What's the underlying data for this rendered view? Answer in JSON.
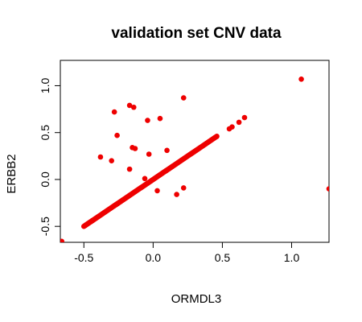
{
  "chart_data": {
    "type": "scatter",
    "title": "validation set CNV data",
    "xlabel": "ORMDL3",
    "ylabel": "ERBB2",
    "xlim": [
      -0.67,
      1.27
    ],
    "ylim": [
      -0.67,
      1.27
    ],
    "x_ticks": [
      -0.5,
      0.0,
      0.5,
      1.0
    ],
    "x_tick_labels": [
      "-0.5",
      "0.0",
      "0.5",
      "1.0"
    ],
    "y_ticks": [
      -0.5,
      0.0,
      0.5,
      1.0
    ],
    "y_tick_labels": [
      "-0.5",
      "0.0",
      "0.5",
      "1.0"
    ],
    "grid": false,
    "point_color": "#ee0000",
    "diagonal_range": [
      -0.5,
      0.46
    ],
    "points": [
      [
        -0.66,
        -0.66
      ],
      [
        1.07,
        1.07
      ],
      [
        1.27,
        -0.1
      ],
      [
        0.66,
        0.66
      ],
      [
        0.62,
        0.61
      ],
      [
        0.57,
        0.56
      ],
      [
        0.55,
        0.54
      ],
      [
        -0.17,
        0.79
      ],
      [
        -0.14,
        0.77
      ],
      [
        0.22,
        0.87
      ],
      [
        -0.28,
        0.72
      ],
      [
        -0.04,
        0.63
      ],
      [
        0.05,
        0.65
      ],
      [
        -0.26,
        0.47
      ],
      [
        -0.15,
        0.34
      ],
      [
        -0.13,
        0.33
      ],
      [
        0.1,
        0.31
      ],
      [
        -0.03,
        0.27
      ],
      [
        -0.38,
        0.24
      ],
      [
        -0.3,
        0.2
      ],
      [
        -0.17,
        0.11
      ],
      [
        -0.06,
        0.01
      ],
      [
        0.03,
        -0.12
      ],
      [
        0.22,
        -0.09
      ],
      [
        0.17,
        -0.16
      ],
      [
        -0.49,
        -0.49
      ],
      [
        -0.47,
        -0.47
      ],
      [
        -0.44,
        -0.44
      ]
    ]
  }
}
